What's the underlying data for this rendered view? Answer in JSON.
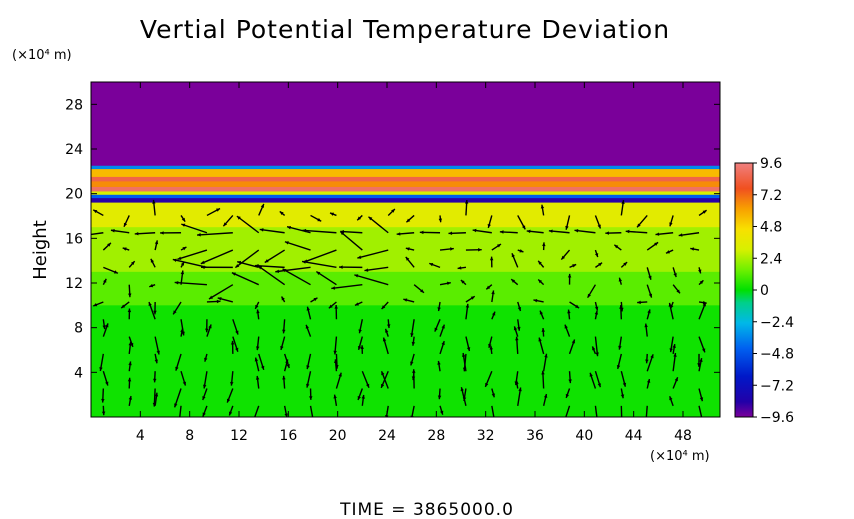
{
  "chart_data": {
    "type": "heatmap",
    "title": "Vertial Potential Temperature Deviation",
    "ylabel": "Height",
    "x_unit": "(×10⁴ m)",
    "y_unit": "(×10⁴ m)",
    "footer": "TIME  =  3865000.0",
    "xlim": [
      0,
      51
    ],
    "ylim": [
      0,
      30
    ],
    "xticks": [
      "4",
      "8",
      "12",
      "16",
      "20",
      "24",
      "28",
      "32",
      "36",
      "40",
      "44",
      "48"
    ],
    "yticks": [
      "4",
      "8",
      "12",
      "16",
      "20",
      "24",
      "28"
    ],
    "xtick_values": [
      4,
      8,
      12,
      16,
      20,
      24,
      28,
      32,
      36,
      40,
      44,
      48
    ],
    "ytick_values": [
      4,
      8,
      12,
      16,
      20,
      24,
      28
    ],
    "colorbar": {
      "range": [
        -9.6,
        9.6
      ],
      "tick_labels": [
        "9.6",
        "7.2",
        "4.8",
        "2.4",
        "0",
        "−2.4",
        "−4.8",
        "−7.2",
        "−9.6"
      ],
      "tick_values": [
        9.6,
        7.2,
        4.8,
        2.4,
        0,
        -2.4,
        -4.8,
        -7.2,
        -9.6
      ]
    },
    "layers": [
      {
        "y_from": 22.5,
        "y_to": 30,
        "value": -9.6
      },
      {
        "y_from": 22.2,
        "y_to": 22.5,
        "value": -3.5
      },
      {
        "y_from": 21.5,
        "y_to": 22.2,
        "value": 5.5
      },
      {
        "y_from": 21.1,
        "y_to": 21.5,
        "value": 8.5
      },
      {
        "y_from": 20.6,
        "y_to": 21.1,
        "value": 6.5
      },
      {
        "y_from": 20.2,
        "y_to": 20.6,
        "value": 9.0
      },
      {
        "y_from": 19.9,
        "y_to": 20.2,
        "value": 3.0
      },
      {
        "y_from": 19.6,
        "y_to": 19.9,
        "value": -4.5
      },
      {
        "y_from": 19.2,
        "y_to": 19.6,
        "value": -8.5
      },
      {
        "y_from": 17.0,
        "y_to": 19.2,
        "value": 3.5
      },
      {
        "y_from": 13.0,
        "y_to": 17.0,
        "value": 2.2
      },
      {
        "y_from": 10.0,
        "y_to": 13.0,
        "value": 1.2
      },
      {
        "y_from": 0,
        "y_to": 10.0,
        "value": 0.2
      }
    ],
    "grid": false,
    "legend": "right"
  }
}
